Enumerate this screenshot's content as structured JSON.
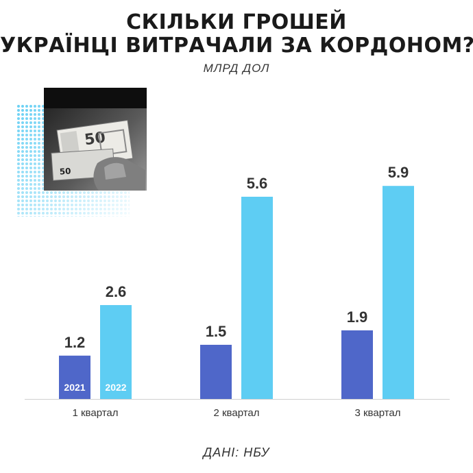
{
  "title_lines": [
    "СКІЛЬКИ ГРОШЕЙ",
    "УКРАЇНЦІ ВИТРАЧАЛИ ЗА КОРДОНОМ?"
  ],
  "unit": "МЛРД ДОЛ",
  "source": "ДАНІ: НБУ",
  "photo": {
    "banknote_large": "50",
    "banknote_small": "50"
  },
  "colors": {
    "series_2021": "#4f67c9",
    "series_2022": "#5ecdf3",
    "axis": "#d0d0d0",
    "text": "#333333"
  },
  "chart_data": {
    "type": "bar",
    "title": "СКІЛЬКИ ГРОШЕЙ УКРАЇНЦІ ВИТРАЧАЛИ ЗА КОРДОНОМ?",
    "ylabel": "МЛРД ДОЛ",
    "categories": [
      "1 квартал",
      "2 квартал",
      "3 квартал"
    ],
    "series": [
      {
        "name": "2021",
        "values": [
          1.2,
          1.5,
          1.9
        ]
      },
      {
        "name": "2022",
        "values": [
          2.6,
          5.6,
          5.9
        ]
      }
    ],
    "value_labels": [
      [
        "1.2",
        "1.5",
        "1.9"
      ],
      [
        "2.6",
        "5.6",
        "5.9"
      ]
    ],
    "ylim": [
      0,
      6.5
    ],
    "grid": false,
    "legend": "inside-first-bars"
  }
}
